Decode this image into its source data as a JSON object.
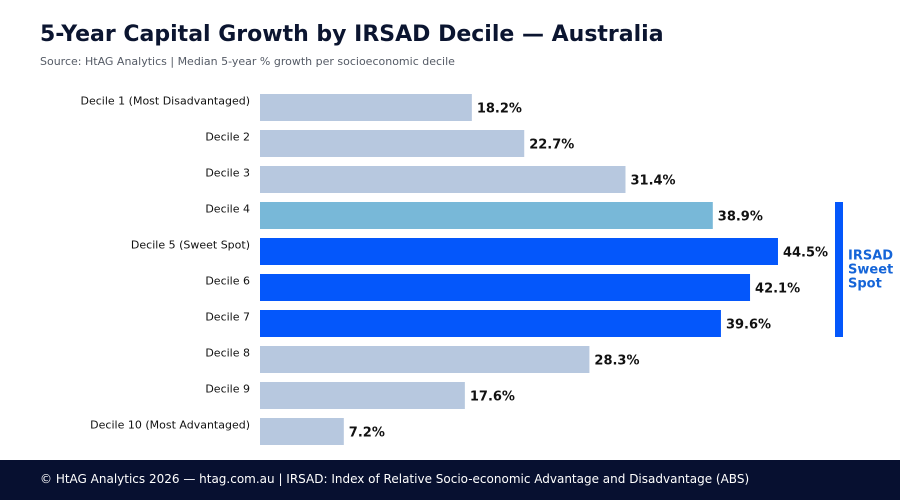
{
  "title": "5-Year Capital Growth by IRSAD Decile — Australia",
  "subtitle": "Source: HtAG Analytics | Median 5-year % growth per socioeconomic decile",
  "footer": "© HtAG Analytics 2026 — htag.com.au | IRSAD: Index of Relative Socio-economic Advantage and Disadvantage (ABS)",
  "colors": {
    "default": "#b7c8df",
    "highlight_light": "#78b8d8",
    "highlight": "#0457fb",
    "bracket": "#0457fb",
    "bracket_text": "#1565d8"
  },
  "chart_data": {
    "type": "bar",
    "orientation": "horizontal",
    "categories": [
      "Decile 1 (Most Disadvantaged)",
      "Decile 2",
      "Decile 3",
      "Decile 4",
      "Decile 5 (Sweet Spot)",
      "Decile 6",
      "Decile 7",
      "Decile 8",
      "Decile 9",
      "Decile 10 (Most Advantaged)"
    ],
    "values": [
      18.2,
      22.7,
      31.4,
      38.9,
      44.5,
      42.1,
      39.6,
      28.3,
      17.6,
      7.2
    ],
    "data_labels": [
      "18.2%",
      "22.7%",
      "31.4%",
      "38.9%",
      "44.5%",
      "42.1%",
      "39.6%",
      "28.3%",
      "17.6%",
      "7.2%"
    ],
    "bar_color_keys": [
      "default",
      "default",
      "default",
      "highlight_light",
      "highlight",
      "highlight",
      "highlight",
      "default",
      "default",
      "default"
    ],
    "xlim": [
      0,
      50
    ],
    "grid": false,
    "annotation": {
      "text_lines": [
        "IRSAD",
        "Sweet",
        "Spot"
      ],
      "spans_categories": [
        "Decile 4",
        "Decile 7"
      ]
    }
  }
}
